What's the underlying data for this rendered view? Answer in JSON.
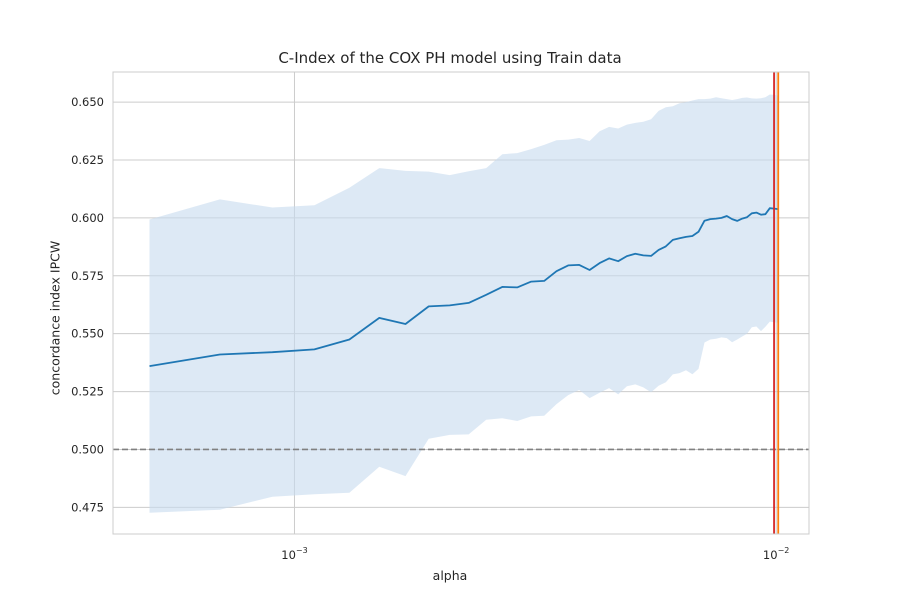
{
  "chart_data": {
    "type": "line",
    "title": "C-Index of the COX PH model using Train data",
    "xlabel": "alpha",
    "ylabel": "concordance index IPCW",
    "xscale": "log",
    "xlim": [
      0.00042,
      0.0117
    ],
    "ylim": [
      0.4635,
      0.663
    ],
    "xticks": [
      {
        "value": 0.001,
        "base": "10",
        "exp": "−3"
      },
      {
        "value": 0.01,
        "base": "10",
        "exp": "−2"
      }
    ],
    "yticks": [
      0.475,
      0.5,
      0.525,
      0.55,
      0.575,
      0.6,
      0.625,
      0.65
    ],
    "grid": true,
    "colors": {
      "line": "#1f77b4",
      "band": "#c6dbef",
      "reference": "#808080",
      "vline_a": "#d62728",
      "vline_b": "#ff7f0e",
      "grid": "#cccccc",
      "axis": "#cccccc"
    },
    "reference_line": {
      "y": 0.5,
      "style": "dashed"
    },
    "vertical_lines": [
      0.0099,
      0.0101
    ],
    "series": [
      {
        "x": [
          0.0005,
          0.0007,
          0.0009,
          0.0011,
          0.0013,
          0.0015,
          0.0017,
          0.0019,
          0.0021,
          0.0023,
          0.0025,
          0.0027,
          0.0029,
          0.0031,
          0.0033,
          0.0035,
          0.0037,
          0.0039,
          0.0041,
          0.0043,
          0.0045,
          0.0047,
          0.0049,
          0.0051,
          0.0053,
          0.0055,
          0.0057,
          0.0059,
          0.0061,
          0.0063,
          0.0065,
          0.0067,
          0.0069,
          0.0071,
          0.0073,
          0.0075,
          0.0077,
          0.0079,
          0.0081,
          0.0083,
          0.0085,
          0.0087,
          0.0089,
          0.0091,
          0.0093,
          0.0095,
          0.0097,
          0.0099,
          0.0101
        ],
        "y": [
          0.536,
          0.541,
          0.542,
          0.5432,
          0.5475,
          0.5568,
          0.5542,
          0.5618,
          0.5622,
          0.5633,
          0.5668,
          0.5702,
          0.57,
          0.5725,
          0.5728,
          0.577,
          0.5795,
          0.5797,
          0.5775,
          0.5805,
          0.5825,
          0.5813,
          0.5835,
          0.5845,
          0.5838,
          0.5836,
          0.5862,
          0.5877,
          0.5905,
          0.5912,
          0.5918,
          0.5922,
          0.594,
          0.5988,
          0.5995,
          0.5997,
          0.6,
          0.6008,
          0.5995,
          0.5987,
          0.5997,
          0.6003,
          0.602,
          0.6023,
          0.6014,
          0.6016,
          0.6042,
          0.604,
          0.6038
        ],
        "upper": [
          0.5993,
          0.608,
          0.6045,
          0.6055,
          0.613,
          0.6215,
          0.6203,
          0.62,
          0.6185,
          0.6201,
          0.6215,
          0.6275,
          0.628,
          0.6297,
          0.6315,
          0.6335,
          0.6338,
          0.6345,
          0.6332,
          0.6374,
          0.6393,
          0.6386,
          0.6403,
          0.641,
          0.6415,
          0.6426,
          0.6462,
          0.6478,
          0.6482,
          0.6495,
          0.65,
          0.6507,
          0.6513,
          0.6513,
          0.6515,
          0.6521,
          0.6517,
          0.6513,
          0.6509,
          0.6513,
          0.6518,
          0.652,
          0.6516,
          0.6515,
          0.6517,
          0.6521,
          0.6533,
          0.6531,
          0.6528
        ],
        "lower": [
          0.4727,
          0.474,
          0.4796,
          0.4807,
          0.4813,
          0.4925,
          0.4885,
          0.5046,
          0.5063,
          0.5065,
          0.5128,
          0.5135,
          0.5123,
          0.5143,
          0.5146,
          0.5196,
          0.5235,
          0.5257,
          0.5222,
          0.5245,
          0.5265,
          0.5238,
          0.5273,
          0.5281,
          0.5268,
          0.5247,
          0.5275,
          0.529,
          0.5324,
          0.533,
          0.5342,
          0.5325,
          0.5348,
          0.5462,
          0.5475,
          0.5478,
          0.5484,
          0.5481,
          0.5463,
          0.5475,
          0.5488,
          0.55,
          0.5528,
          0.5531,
          0.5511,
          0.553,
          0.5552,
          0.5549,
          0.5548
        ]
      }
    ]
  }
}
